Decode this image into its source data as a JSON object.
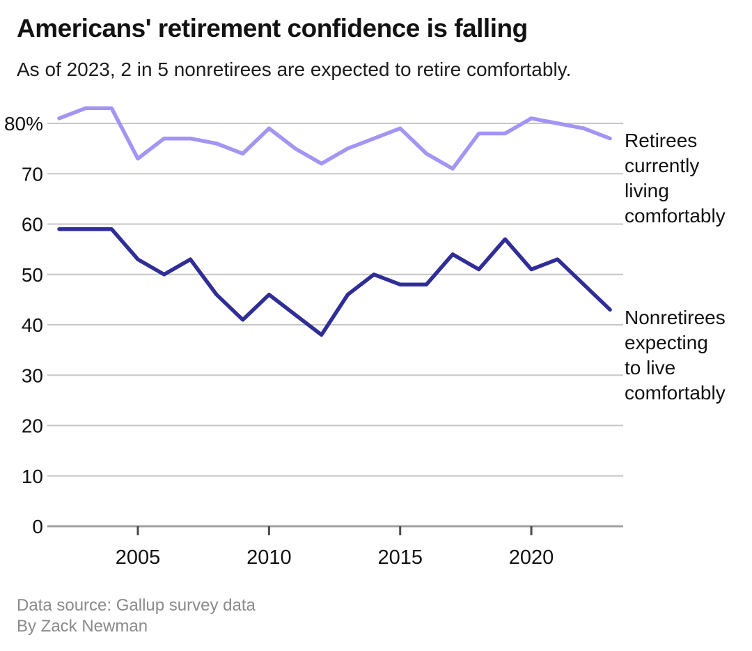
{
  "header": {
    "title": "Americans' retirement confidence is falling",
    "subtitle": "As of 2023, 2 in 5 nonretirees are expected to retire comfortably."
  },
  "chart_data": {
    "type": "line",
    "x": [
      2002,
      2003,
      2004,
      2005,
      2006,
      2007,
      2008,
      2009,
      2010,
      2011,
      2012,
      2013,
      2014,
      2015,
      2016,
      2017,
      2018,
      2019,
      2020,
      2021,
      2022,
      2023
    ],
    "series": [
      {
        "name": "Retirees currently living comfortably",
        "color": "#a494f4",
        "values": [
          81,
          83,
          83,
          73,
          77,
          77,
          76,
          74,
          79,
          75,
          72,
          75,
          77,
          79,
          74,
          71,
          78,
          78,
          81,
          80,
          79,
          77
        ]
      },
      {
        "name": "Nonretirees expecting to live comfortably",
        "color": "#302e96",
        "values": [
          59,
          59,
          59,
          53,
          50,
          53,
          46,
          41,
          46,
          42,
          38,
          46,
          50,
          48,
          48,
          54,
          51,
          57,
          51,
          53,
          48,
          43
        ]
      }
    ],
    "ylim": [
      0,
      84
    ],
    "yticks": [
      0,
      10,
      20,
      30,
      40,
      50,
      60,
      70,
      80
    ],
    "ytick_labels": [
      "0",
      "10",
      "20",
      "30",
      "40",
      "50",
      "60",
      "70",
      "80%"
    ],
    "xticks": [
      2005,
      2010,
      2015,
      2020
    ],
    "xtick_labels": [
      "2005",
      "2010",
      "2015",
      "2020"
    ],
    "grid": true,
    "legend_position": "right-annotations",
    "annotations": [
      {
        "series": "retirees",
        "lines": [
          "Retirees",
          "currently",
          "living",
          "comfortably"
        ]
      },
      {
        "series": "nonretirees",
        "lines": [
          "Nonretirees",
          "expecting",
          "to live",
          "comfortably"
        ]
      }
    ]
  },
  "footer": {
    "source": "Data source: Gallup survey data",
    "byline": "By Zack Newman"
  }
}
